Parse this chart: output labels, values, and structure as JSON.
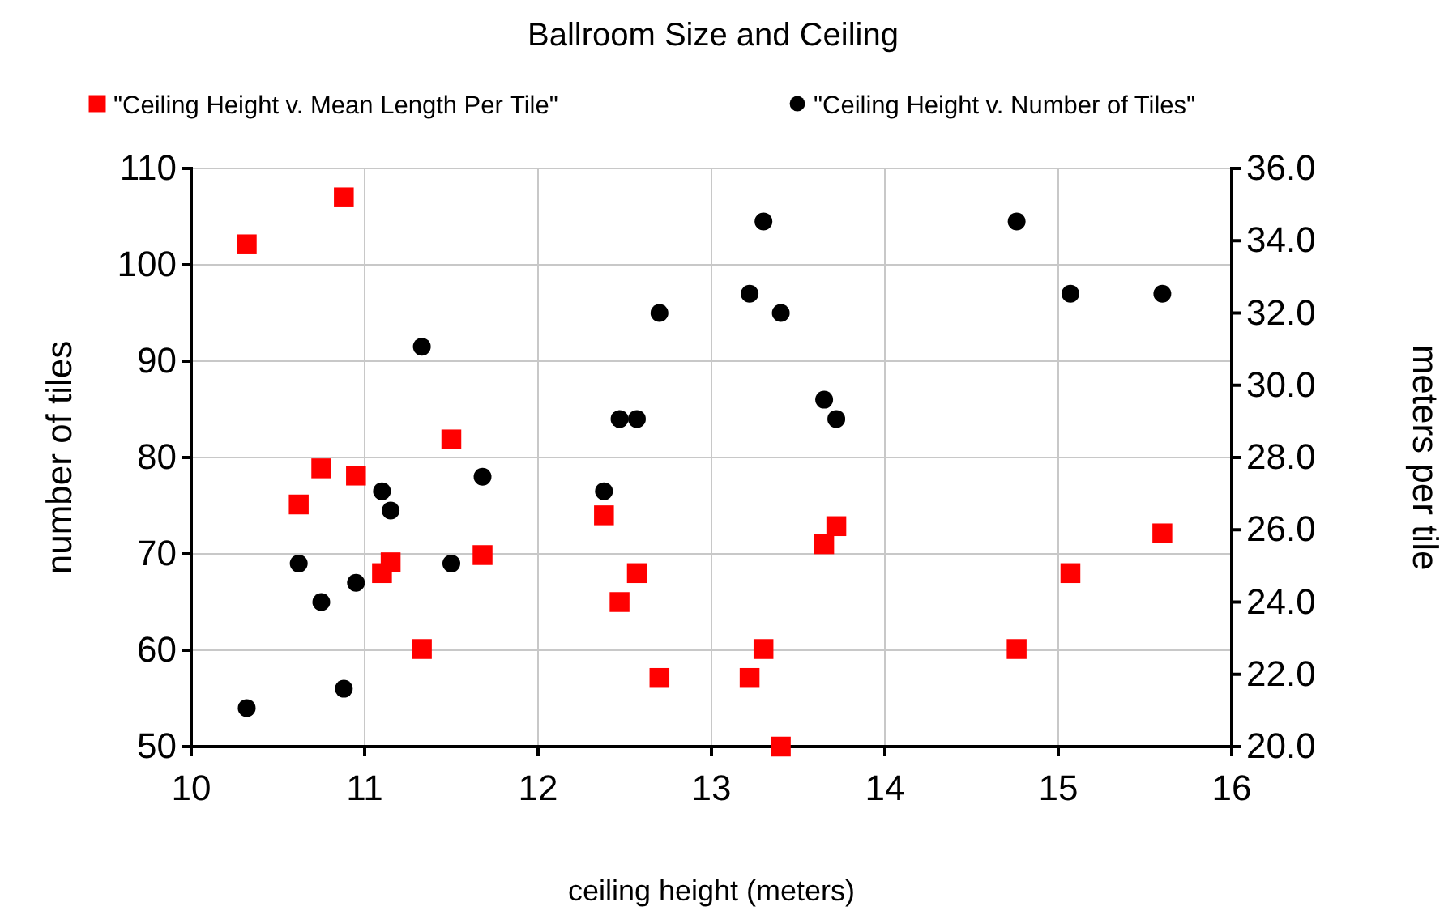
{
  "chart_data": {
    "type": "scatter",
    "title": "Ballroom Size and Ceiling",
    "xlabel": "ceiling height (meters)",
    "ylabel": "number of tiles",
    "y2label": "meters per tile",
    "xlim": [
      10,
      16
    ],
    "xticks": [
      10,
      11,
      12,
      13,
      14,
      15,
      16
    ],
    "ylim": [
      50,
      110
    ],
    "yticks": [
      50,
      60,
      70,
      80,
      90,
      100,
      110
    ],
    "y2lim": [
      20,
      36
    ],
    "y2ticks": [
      {
        "value": 20,
        "label": "20.0"
      },
      {
        "value": 22,
        "label": "22.0"
      },
      {
        "value": 24,
        "label": "24.0"
      },
      {
        "value": 26,
        "label": "26.0"
      },
      {
        "value": 28,
        "label": "28.0"
      },
      {
        "value": 30,
        "label": "30.0"
      },
      {
        "value": 32,
        "label": "32.0"
      },
      {
        "value": 34,
        "label": "34.0"
      },
      {
        "value": 36,
        "label": "36.0"
      }
    ],
    "grid": true,
    "legend": "top",
    "series": [
      {
        "name": "\"Ceiling Height v. Mean Length Per Tile\"",
        "color": "#ff0000",
        "marker": "square",
        "axis": "y2",
        "x": [
          10.32,
          10.62,
          10.75,
          10.88,
          10.95,
          11.1,
          11.15,
          11.33,
          11.5,
          11.68,
          12.38,
          12.47,
          12.57,
          12.7,
          13.22,
          13.3,
          13.4,
          13.65,
          13.72,
          14.76,
          15.07,
          15.6
        ],
        "values": [
          33.9,
          26.7,
          27.7,
          35.2,
          27.5,
          24.8,
          25.1,
          22.7,
          28.5,
          25.3,
          26.4,
          24.0,
          24.8,
          21.9,
          21.9,
          22.7,
          20.0,
          25.6,
          26.1,
          22.7,
          24.8,
          25.9
        ]
      },
      {
        "name": "\"Ceiling Height v. Number of Tiles\"",
        "color": "#000000",
        "marker": "circle",
        "axis": "y",
        "x": [
          10.32,
          10.62,
          10.75,
          10.88,
          10.95,
          11.1,
          11.15,
          11.33,
          11.5,
          11.68,
          12.38,
          12.47,
          12.57,
          12.7,
          13.22,
          13.3,
          13.4,
          13.65,
          13.72,
          14.76,
          15.07,
          15.6
        ],
        "values": [
          54,
          69,
          65,
          56,
          67,
          76.5,
          74.5,
          91.5,
          69,
          78,
          76.5,
          84,
          84,
          95,
          97,
          104.5,
          95,
          86,
          84,
          104.5,
          97,
          97
        ]
      }
    ]
  }
}
